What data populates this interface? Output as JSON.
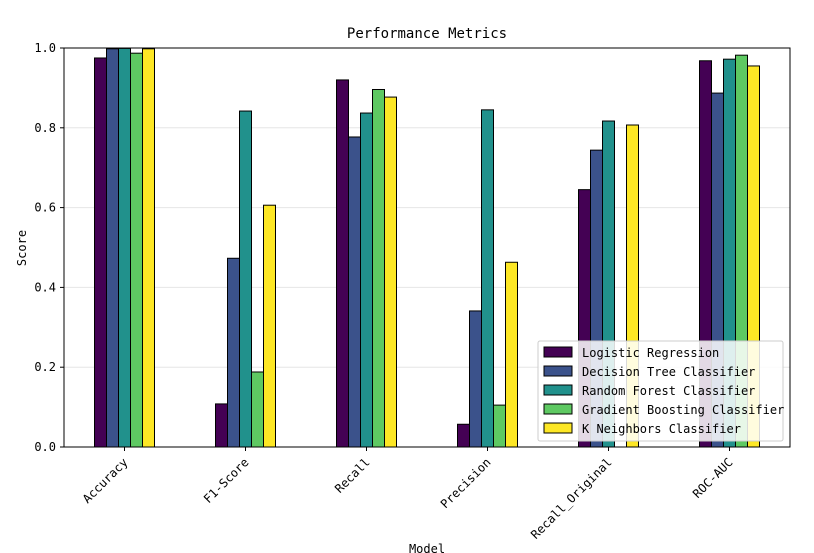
{
  "chart_data": {
    "type": "bar",
    "title": "Performance Metrics",
    "xlabel": "Model",
    "ylabel": "Score",
    "ylim": [
      0,
      1
    ],
    "yticks": [
      "0.0",
      "0.2",
      "0.4",
      "0.6",
      "0.8",
      "1.0"
    ],
    "grid": "horizontal",
    "legend_position": "bottom-right",
    "categories": [
      "Accuracy",
      "F1-Score",
      "Recall",
      "Precision",
      "Recall_Original",
      "ROC-AUC"
    ],
    "series": [
      {
        "name": "Logistic Regression",
        "color": "#440154",
        "values": [
          0.975,
          0.108,
          0.92,
          0.057,
          0.645,
          0.968
        ]
      },
      {
        "name": "Decision Tree Classifier",
        "color": "#3b528b",
        "values": [
          0.998,
          0.473,
          0.777,
          0.341,
          0.744,
          0.887
        ]
      },
      {
        "name": "Random Forest Classifier",
        "color": "#21918c",
        "values": [
          0.999,
          0.842,
          0.837,
          0.845,
          0.817,
          0.972
        ]
      },
      {
        "name": "Gradient Boosting Classifier",
        "color": "#5ec962",
        "values": [
          0.987,
          0.188,
          0.896,
          0.105,
          0.0,
          0.982
        ]
      },
      {
        "name": "K Neighbors Classifier",
        "color": "#fde725",
        "values": [
          0.998,
          0.606,
          0.877,
          0.463,
          0.807,
          0.955
        ]
      }
    ]
  }
}
